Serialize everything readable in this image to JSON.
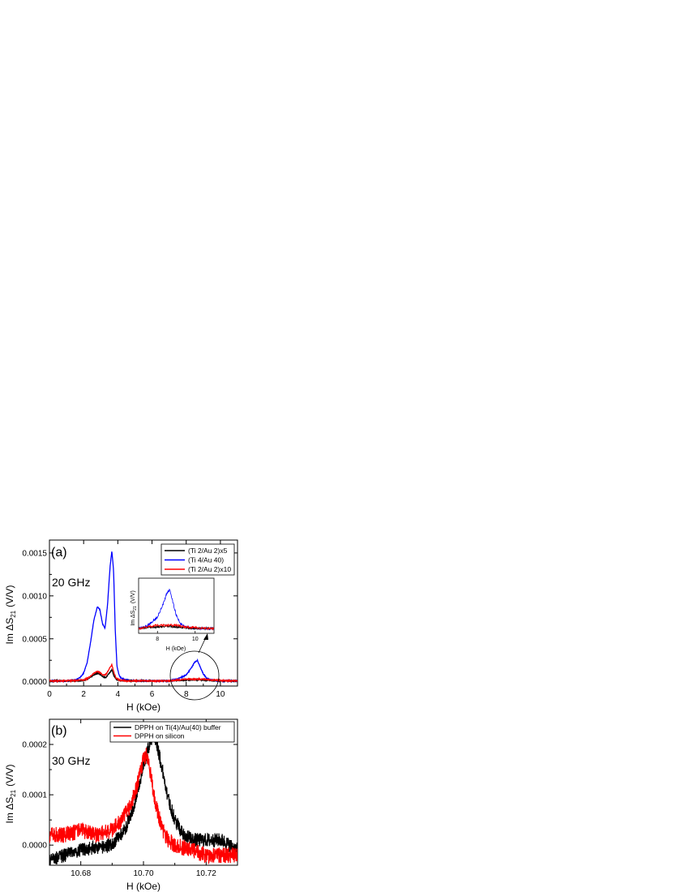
{
  "chart_data": [
    {
      "type": "line",
      "panel_label": "(a)",
      "annotation": "20 GHz",
      "xlabel": "H (kOe)",
      "ylabel": "Im ΔS",
      "ylabel_sub": "21",
      "ylabel_unit": "(V/V)",
      "xlim": [
        0,
        11
      ],
      "ylim": [
        -5e-05,
        0.00165
      ],
      "xticks": [
        0,
        2,
        4,
        6,
        8,
        10
      ],
      "yticks": [
        0.0,
        0.0005,
        0.001,
        0.0015
      ],
      "xtick_labels": [
        "0",
        "2",
        "4",
        "6",
        "8",
        "10"
      ],
      "ytick_labels": [
        "0.0000",
        "0.0005",
        "0.0010",
        "0.0015"
      ],
      "legend_position": "top-right",
      "series": [
        {
          "name": "(Ti 2/Au 2)x5",
          "color": "#000000",
          "x": [
            0,
            1,
            1.5,
            2,
            2.3,
            2.6,
            2.8,
            2.95,
            3.1,
            3.3,
            3.5,
            3.65,
            3.75,
            3.9,
            4.1,
            4.5,
            5,
            6,
            7,
            7.5,
            8,
            8.5,
            9,
            9.5,
            10,
            10.5,
            11
          ],
          "y": [
            1e-05,
            1e-05,
            1e-05,
            1.5e-05,
            4e-05,
            8e-05,
            0.0001,
            9e-05,
            6e-05,
            5e-05,
            0.0001,
            0.00014,
            8e-05,
            3e-05,
            1.5e-05,
            1e-05,
            1e-05,
            1e-05,
            1e-05,
            1.5e-05,
            2e-05,
            2.5e-05,
            2e-05,
            1.5e-05,
            1e-05,
            1e-05,
            1e-05
          ]
        },
        {
          "name": "(Ti 4/Au 40)",
          "color": "#0000ff",
          "x": [
            0,
            1,
            1.5,
            1.8,
            2.0,
            2.2,
            2.4,
            2.6,
            2.8,
            2.95,
            3.1,
            3.25,
            3.4,
            3.55,
            3.65,
            3.75,
            3.85,
            3.95,
            4.1,
            4.3,
            4.6,
            5,
            6,
            7,
            7.5,
            8,
            8.3,
            8.5,
            8.65,
            8.8,
            9,
            9.2,
            9.5,
            10,
            10.5,
            11
          ],
          "y": [
            1e-05,
            1e-05,
            2e-05,
            5e-05,
            0.0001,
            0.00022,
            0.00045,
            0.00072,
            0.00087,
            0.00084,
            0.00068,
            0.00062,
            0.0009,
            0.00135,
            0.00152,
            0.0013,
            0.0006,
            0.00018,
            6e-05,
            3e-05,
            2e-05,
            1e-05,
            1e-05,
            1e-05,
            3e-05,
            8e-05,
            0.00016,
            0.00023,
            0.00025,
            0.00018,
            9e-05,
            4e-05,
            2e-05,
            1e-05,
            1e-05,
            1e-05
          ]
        },
        {
          "name": "(Ti 2/Au 2)x10",
          "color": "#ff0000",
          "x": [
            0,
            1,
            1.5,
            2,
            2.3,
            2.6,
            2.8,
            2.95,
            3.1,
            3.3,
            3.5,
            3.65,
            3.75,
            3.9,
            4.1,
            4.5,
            5,
            6,
            7,
            7.5,
            8,
            8.5,
            9,
            9.5,
            10,
            10.5,
            11
          ],
          "y": [
            1e-05,
            1e-05,
            1.5e-05,
            2e-05,
            5e-05,
            0.0001,
            0.00012,
            0.00011,
            8e-05,
            8e-05,
            0.00015,
            0.0002,
            0.00012,
            4e-05,
            2e-05,
            1e-05,
            1e-05,
            1e-05,
            1e-05,
            2e-05,
            3e-05,
            3e-05,
            3e-05,
            2e-05,
            1.5e-05,
            1e-05,
            1e-05
          ]
        }
      ],
      "inset": {
        "xticks": [
          8,
          10
        ],
        "xtick_labels": [
          "8",
          "10"
        ],
        "xlim": [
          7,
          11
        ],
        "xlabel": "H (kOe)",
        "ylabel": "Im ΔS",
        "ylabel_sub": "21",
        "ylabel_unit": "(V/V)"
      }
    },
    {
      "type": "line",
      "panel_label": "(b)",
      "annotation": "30 GHz",
      "xlabel": "H (kOe)",
      "ylabel": "Im ΔS",
      "ylabel_sub": "21",
      "ylabel_unit": "(V/V)",
      "xlim": [
        10.67,
        10.73
      ],
      "ylim": [
        -4e-05,
        0.00025
      ],
      "xticks": [
        10.68,
        10.7,
        10.72
      ],
      "yticks": [
        0.0,
        0.0001,
        0.0002
      ],
      "xtick_labels": [
        "10.68",
        "10.70",
        "10.72"
      ],
      "ytick_labels": [
        "0.0000",
        "0.0001",
        "0.0002"
      ],
      "legend_position": "top-right",
      "series": [
        {
          "name": "DPPH on Ti(4)/Au(40) buffer",
          "color": "#000000",
          "x": [
            10.67,
            10.675,
            10.68,
            10.685,
            10.69,
            10.694,
            10.697,
            10.699,
            10.701,
            10.703,
            10.704,
            10.706,
            10.708,
            10.71,
            10.713,
            10.716,
            10.72,
            10.725,
            10.73
          ],
          "y": [
            -3e-05,
            -2e-05,
            -1e-05,
            -5e-06,
            0.0,
            3e-05,
            8e-05,
            0.00013,
            0.00018,
            0.00022,
            0.00021,
            0.00015,
            9e-05,
            5e-05,
            2e-05,
            1e-05,
            1e-05,
            1e-05,
            -1e-05
          ]
        },
        {
          "name": "DPPH on silicon",
          "color": "#ff0000",
          "x": [
            10.67,
            10.675,
            10.68,
            10.685,
            10.69,
            10.693,
            10.696,
            10.698,
            10.7,
            10.701,
            10.702,
            10.704,
            10.706,
            10.708,
            10.71,
            10.715,
            10.72,
            10.725,
            10.73
          ],
          "y": [
            2e-05,
            2e-05,
            3e-05,
            2e-05,
            3e-05,
            5e-05,
            8e-05,
            0.00012,
            0.00017,
            0.00018,
            0.00015,
            8e-05,
            3e-05,
            1e-05,
            0.0,
            -1e-05,
            -2e-05,
            -2e-05,
            -2e-05
          ]
        }
      ]
    }
  ]
}
